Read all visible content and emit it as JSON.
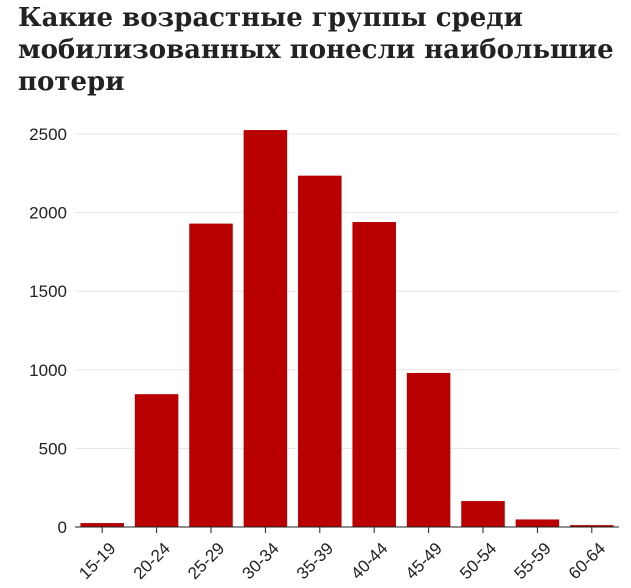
{
  "chart_data": {
    "type": "bar",
    "title": "Какие возрастные группы среди мобилизованных понесли наибольшие потери",
    "xlabel": "",
    "ylabel": "",
    "categories": [
      "15-19",
      "20-24",
      "25-29",
      "30-34",
      "35-39",
      "40-44",
      "45-49",
      "50-54",
      "55-59",
      "60-64"
    ],
    "values": [
      25,
      845,
      1930,
      2525,
      2235,
      1940,
      980,
      165,
      48,
      12
    ],
    "ylim": [
      0,
      2500
    ],
    "yticks": [
      "0",
      "500",
      "1000",
      "1500",
      "2000",
      "2500"
    ],
    "grid": true,
    "colors": {
      "bar": "#b80000",
      "grid": "#e6e6e6",
      "axis": "#222222"
    }
  }
}
